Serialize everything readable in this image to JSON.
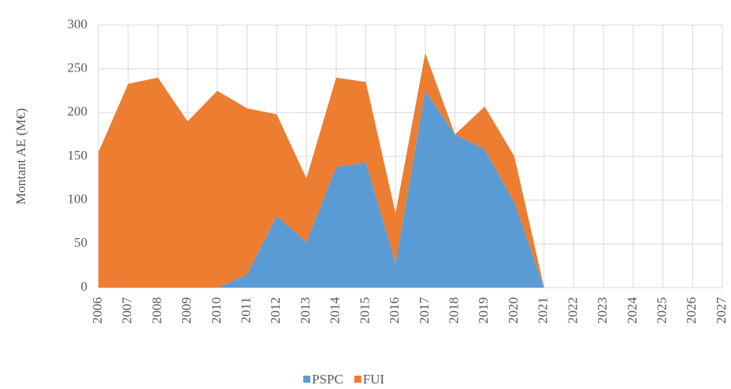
{
  "chart_data": {
    "type": "stacked_area",
    "y_label": "Montant AE (M€)",
    "categories": [
      "2006",
      "2007",
      "2008",
      "2009",
      "2010",
      "2011",
      "2012",
      "2013",
      "2014",
      "2015",
      "2016",
      "2017",
      "2018",
      "2019",
      "2020",
      "2021",
      "2022",
      "2023",
      "2024",
      "2025",
      "2026",
      "2027"
    ],
    "series": [
      {
        "name": "PSPC",
        "color": "#5b9bd5",
        "values": [
          0,
          0,
          0,
          0,
          0,
          15,
          82,
          52,
          138,
          143,
          28,
          225,
          175,
          158,
          97,
          0,
          0,
          0,
          0,
          0,
          0,
          0
        ]
      },
      {
        "name": "FUI",
        "color": "#ed7d31",
        "values": [
          155,
          233,
          240,
          190,
          225,
          190,
          116,
          73,
          102,
          92,
          57,
          43,
          0,
          49,
          53,
          0,
          0,
          0,
          0,
          0,
          0,
          0
        ]
      }
    ],
    "ylim": [
      0,
      300
    ],
    "yticks": [
      0,
      50,
      100,
      150,
      200,
      250,
      300
    ],
    "grid": true,
    "legend": "bottom"
  }
}
